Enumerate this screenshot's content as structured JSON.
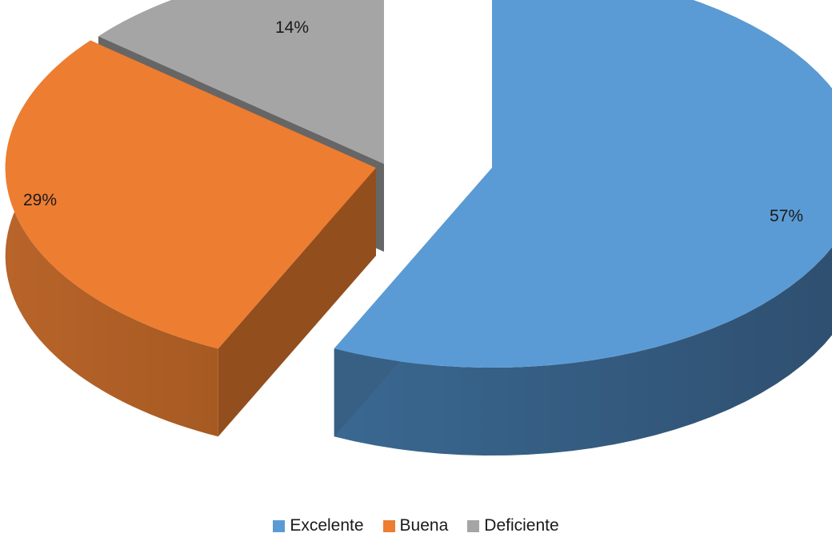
{
  "chart_data": {
    "type": "pie",
    "style": "3d exploded",
    "categories": [
      "Excelente",
      "Buena",
      "Deficiente"
    ],
    "values": [
      57,
      29,
      14
    ],
    "labels": [
      "57%",
      "29%",
      "14%"
    ],
    "colors": [
      "#5B9BD5",
      "#ED7D31",
      "#A5A5A5"
    ],
    "legend_position": "bottom",
    "title": ""
  }
}
